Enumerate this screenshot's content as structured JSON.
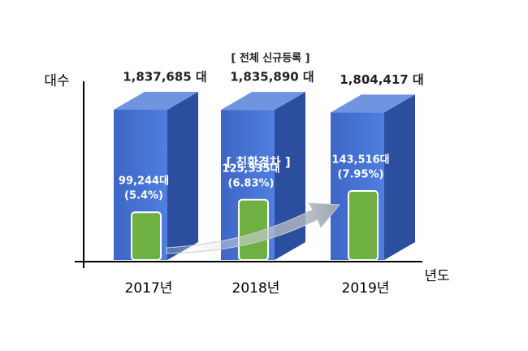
{
  "chart_data": {
    "type": "bar3d",
    "categories": [
      "2017년",
      "2018년",
      "2019년"
    ],
    "y_label": "대수",
    "x_label": "년도",
    "series": [
      {
        "name": "[ 전체 신규등록 ]",
        "color": "#3f6ccc",
        "values": [
          1837685,
          1835890,
          1804417
        ],
        "value_labels": [
          "1,837,685 대",
          "1,835,890 대",
          "1,804,417 대"
        ]
      },
      {
        "name": "[ 친환경차 ]",
        "color": "#6fb043",
        "values": [
          99244,
          125335,
          143516
        ],
        "value_labels": [
          "99,244대",
          "125,335대",
          "143,516대"
        ],
        "share_labels": [
          "(5.4%)",
          "(6.83%)",
          "(7.95%)"
        ]
      }
    ]
  }
}
